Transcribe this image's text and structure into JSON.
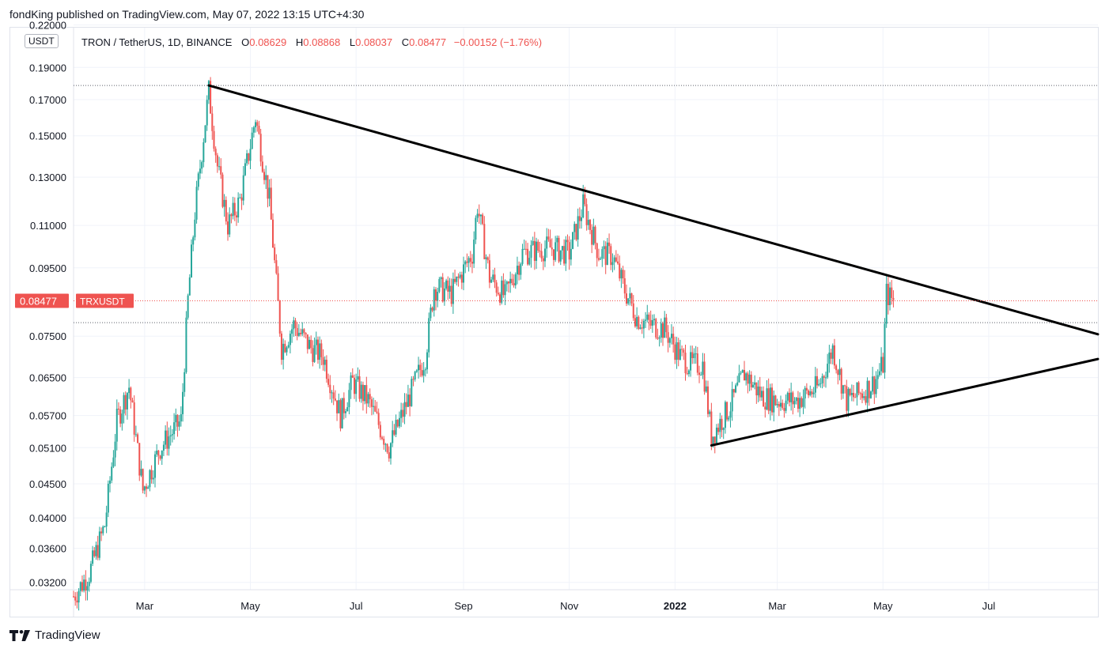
{
  "header": {
    "publisher_line": "fondKing published on TradingView.com, May 07, 2022 13:15 UTC+4:30"
  },
  "currency_badge": "USDT",
  "legend": {
    "symbol": "TRON / TetherUS, 1D, BINANCE",
    "open_label": "O",
    "open": "0.08629",
    "high_label": "H",
    "high": "0.08868",
    "low_label": "L",
    "low": "0.08037",
    "close_label": "C",
    "close": "0.08477",
    "change": "−0.00152 (−1.76%)"
  },
  "footer": {
    "brand": "TradingView"
  },
  "colors": {
    "up": "#26a69a",
    "down": "#ef5350",
    "trendline": "#000000",
    "last_price": "#ef5350"
  },
  "chart_data": {
    "type": "candlestick",
    "scale": "log",
    "symbol": "TRXUSDT",
    "ylabel": "USDT",
    "yticks": [
      "0.03200",
      "0.03600",
      "0.04000",
      "0.04500",
      "0.05100",
      "0.05700",
      "0.06500",
      "0.07500",
      "0.09500",
      "0.11000",
      "0.13000",
      "0.15000",
      "0.17000",
      "0.19000",
      "0.22000"
    ],
    "ylim": [
      0.0312,
      0.218
    ],
    "xlim": [
      "2021-01-19",
      "2022-09-02"
    ],
    "xticks": [
      {
        "label": "Mar",
        "date": "2021-03-01",
        "bold": false
      },
      {
        "label": "May",
        "date": "2021-05-01",
        "bold": false
      },
      {
        "label": "Jul",
        "date": "2021-07-01",
        "bold": false
      },
      {
        "label": "Sep",
        "date": "2021-09-01",
        "bold": false
      },
      {
        "label": "Nov",
        "date": "2021-11-01",
        "bold": false
      },
      {
        "label": "2022",
        "date": "2022-01-01",
        "bold": true
      },
      {
        "label": "Mar",
        "date": "2022-03-01",
        "bold": false
      },
      {
        "label": "May",
        "date": "2022-05-01",
        "bold": false
      },
      {
        "label": "Jul",
        "date": "2022-07-01",
        "bold": false
      }
    ],
    "last_price": {
      "value": 0.08477,
      "label": "0.08477",
      "tag": "TRXUSDT"
    },
    "horizontal_levels": [
      0.1785,
      0.0786
    ],
    "trendlines": [
      {
        "name": "upper",
        "points": [
          [
            "2021-04-07",
            0.1785
          ],
          [
            "2022-09-02",
            0.0755
          ]
        ]
      },
      {
        "name": "lower",
        "points": [
          [
            "2022-01-22",
            0.0514
          ],
          [
            "2022-09-02",
            0.0693
          ]
        ]
      }
    ],
    "price_path": [
      [
        "2021-01-19",
        0.0305
      ],
      [
        "2021-01-28",
        0.033
      ],
      [
        "2021-02-06",
        0.039
      ],
      [
        "2021-02-13",
        0.056
      ],
      [
        "2021-02-20",
        0.063
      ],
      [
        "2021-02-28",
        0.044
      ],
      [
        "2021-03-10",
        0.051
      ],
      [
        "2021-03-22",
        0.056
      ],
      [
        "2021-03-26",
        0.085
      ],
      [
        "2021-03-30",
        0.115
      ],
      [
        "2021-04-04",
        0.15
      ],
      [
        "2021-04-07",
        0.175
      ],
      [
        "2021-04-12",
        0.135
      ],
      [
        "2021-04-18",
        0.11
      ],
      [
        "2021-04-25",
        0.12
      ],
      [
        "2021-05-04",
        0.16
      ],
      [
        "2021-05-12",
        0.12
      ],
      [
        "2021-05-19",
        0.072
      ],
      [
        "2021-05-26",
        0.078
      ],
      [
        "2021-06-05",
        0.072
      ],
      [
        "2021-06-12",
        0.07
      ],
      [
        "2021-06-22",
        0.057
      ],
      [
        "2021-06-29",
        0.064
      ],
      [
        "2021-07-08",
        0.06
      ],
      [
        "2021-07-20",
        0.051
      ],
      [
        "2021-08-02",
        0.062
      ],
      [
        "2021-08-10",
        0.07
      ],
      [
        "2021-08-15",
        0.089
      ],
      [
        "2021-08-25",
        0.087
      ],
      [
        "2021-09-06",
        0.1
      ],
      [
        "2021-09-09",
        0.118
      ],
      [
        "2021-09-16",
        0.092
      ],
      [
        "2021-09-25",
        0.086
      ],
      [
        "2021-10-05",
        0.1
      ],
      [
        "2021-10-20",
        0.102
      ],
      [
        "2021-11-01",
        0.1
      ],
      [
        "2021-11-09",
        0.118
      ],
      [
        "2021-11-18",
        0.1
      ],
      [
        "2021-11-26",
        0.099
      ],
      [
        "2021-12-03",
        0.088
      ],
      [
        "2021-12-10",
        0.08
      ],
      [
        "2021-12-18",
        0.078
      ],
      [
        "2021-12-26",
        0.077
      ],
      [
        "2022-01-04",
        0.07
      ],
      [
        "2022-01-10",
        0.068
      ],
      [
        "2022-01-17",
        0.068
      ],
      [
        "2022-01-22",
        0.053
      ],
      [
        "2022-02-02",
        0.059
      ],
      [
        "2022-02-10",
        0.066
      ],
      [
        "2022-02-20",
        0.061
      ],
      [
        "2022-03-01",
        0.06
      ],
      [
        "2022-03-12",
        0.06
      ],
      [
        "2022-03-25",
        0.063
      ],
      [
        "2022-04-02",
        0.072
      ],
      [
        "2022-04-10",
        0.06
      ],
      [
        "2022-04-20",
        0.062
      ],
      [
        "2022-04-26",
        0.064
      ],
      [
        "2022-05-01",
        0.068
      ],
      [
        "2022-05-03",
        0.087
      ],
      [
        "2022-05-07",
        0.0848
      ]
    ]
  }
}
